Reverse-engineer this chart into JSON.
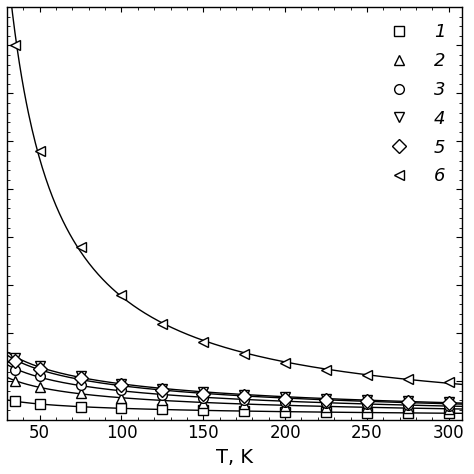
{
  "title": "",
  "xlabel": "T, K",
  "ylabel": "",
  "xlim": [
    30,
    308
  ],
  "ylim": [
    0.5,
    22
  ],
  "background_color": "#ffffff",
  "series": [
    {
      "label": "1",
      "marker": "s",
      "T": [
        35,
        50,
        75,
        100,
        125,
        150,
        175,
        200,
        225,
        250,
        275,
        300
      ],
      "kappa": [
        1.45,
        1.32,
        1.18,
        1.09,
        1.03,
        0.98,
        0.94,
        0.91,
        0.89,
        0.87,
        0.85,
        0.84
      ]
    },
    {
      "label": "2",
      "marker": "^",
      "T": [
        35,
        50,
        75,
        100,
        125,
        150,
        175,
        200,
        225,
        250,
        275,
        300
      ],
      "kappa": [
        2.5,
        2.2,
        1.88,
        1.65,
        1.5,
        1.38,
        1.3,
        1.23,
        1.18,
        1.14,
        1.11,
        1.08
      ]
    },
    {
      "label": "3",
      "marker": "o",
      "T": [
        35,
        50,
        75,
        100,
        125,
        150,
        175,
        200,
        225,
        250,
        275,
        300
      ],
      "kappa": [
        3.1,
        2.75,
        2.32,
        2.02,
        1.8,
        1.65,
        1.53,
        1.44,
        1.37,
        1.31,
        1.27,
        1.23
      ]
    },
    {
      "label": "4",
      "marker": "v",
      "T": [
        35,
        50,
        75,
        100,
        125,
        150,
        175,
        200,
        225,
        250,
        275,
        300
      ],
      "kappa": [
        3.7,
        3.3,
        2.75,
        2.38,
        2.12,
        1.93,
        1.78,
        1.67,
        1.58,
        1.51,
        1.46,
        1.41
      ]
    },
    {
      "label": "5",
      "marker": "D",
      "T": [
        35,
        50,
        75,
        100,
        125,
        150,
        175,
        200,
        225,
        250,
        275,
        300
      ],
      "kappa": [
        3.55,
        3.15,
        2.65,
        2.28,
        2.03,
        1.85,
        1.71,
        1.6,
        1.52,
        1.45,
        1.4,
        1.35
      ]
    },
    {
      "label": "6",
      "marker": "<",
      "T": [
        35,
        50,
        75,
        100,
        125,
        150,
        175,
        200,
        225,
        250,
        275,
        300
      ],
      "kappa": [
        20.0,
        14.5,
        9.5,
        7.0,
        5.5,
        4.55,
        3.9,
        3.45,
        3.1,
        2.82,
        2.62,
        2.47
      ]
    }
  ],
  "legend_labels": [
    "1",
    "2",
    "3",
    "4",
    "5",
    "6"
  ],
  "legend_markers": [
    "s",
    "^",
    "o",
    "v",
    "D",
    "<"
  ],
  "xticks": [
    50,
    100,
    150,
    200,
    250,
    300
  ],
  "font_size": 13,
  "marker_size": 7
}
